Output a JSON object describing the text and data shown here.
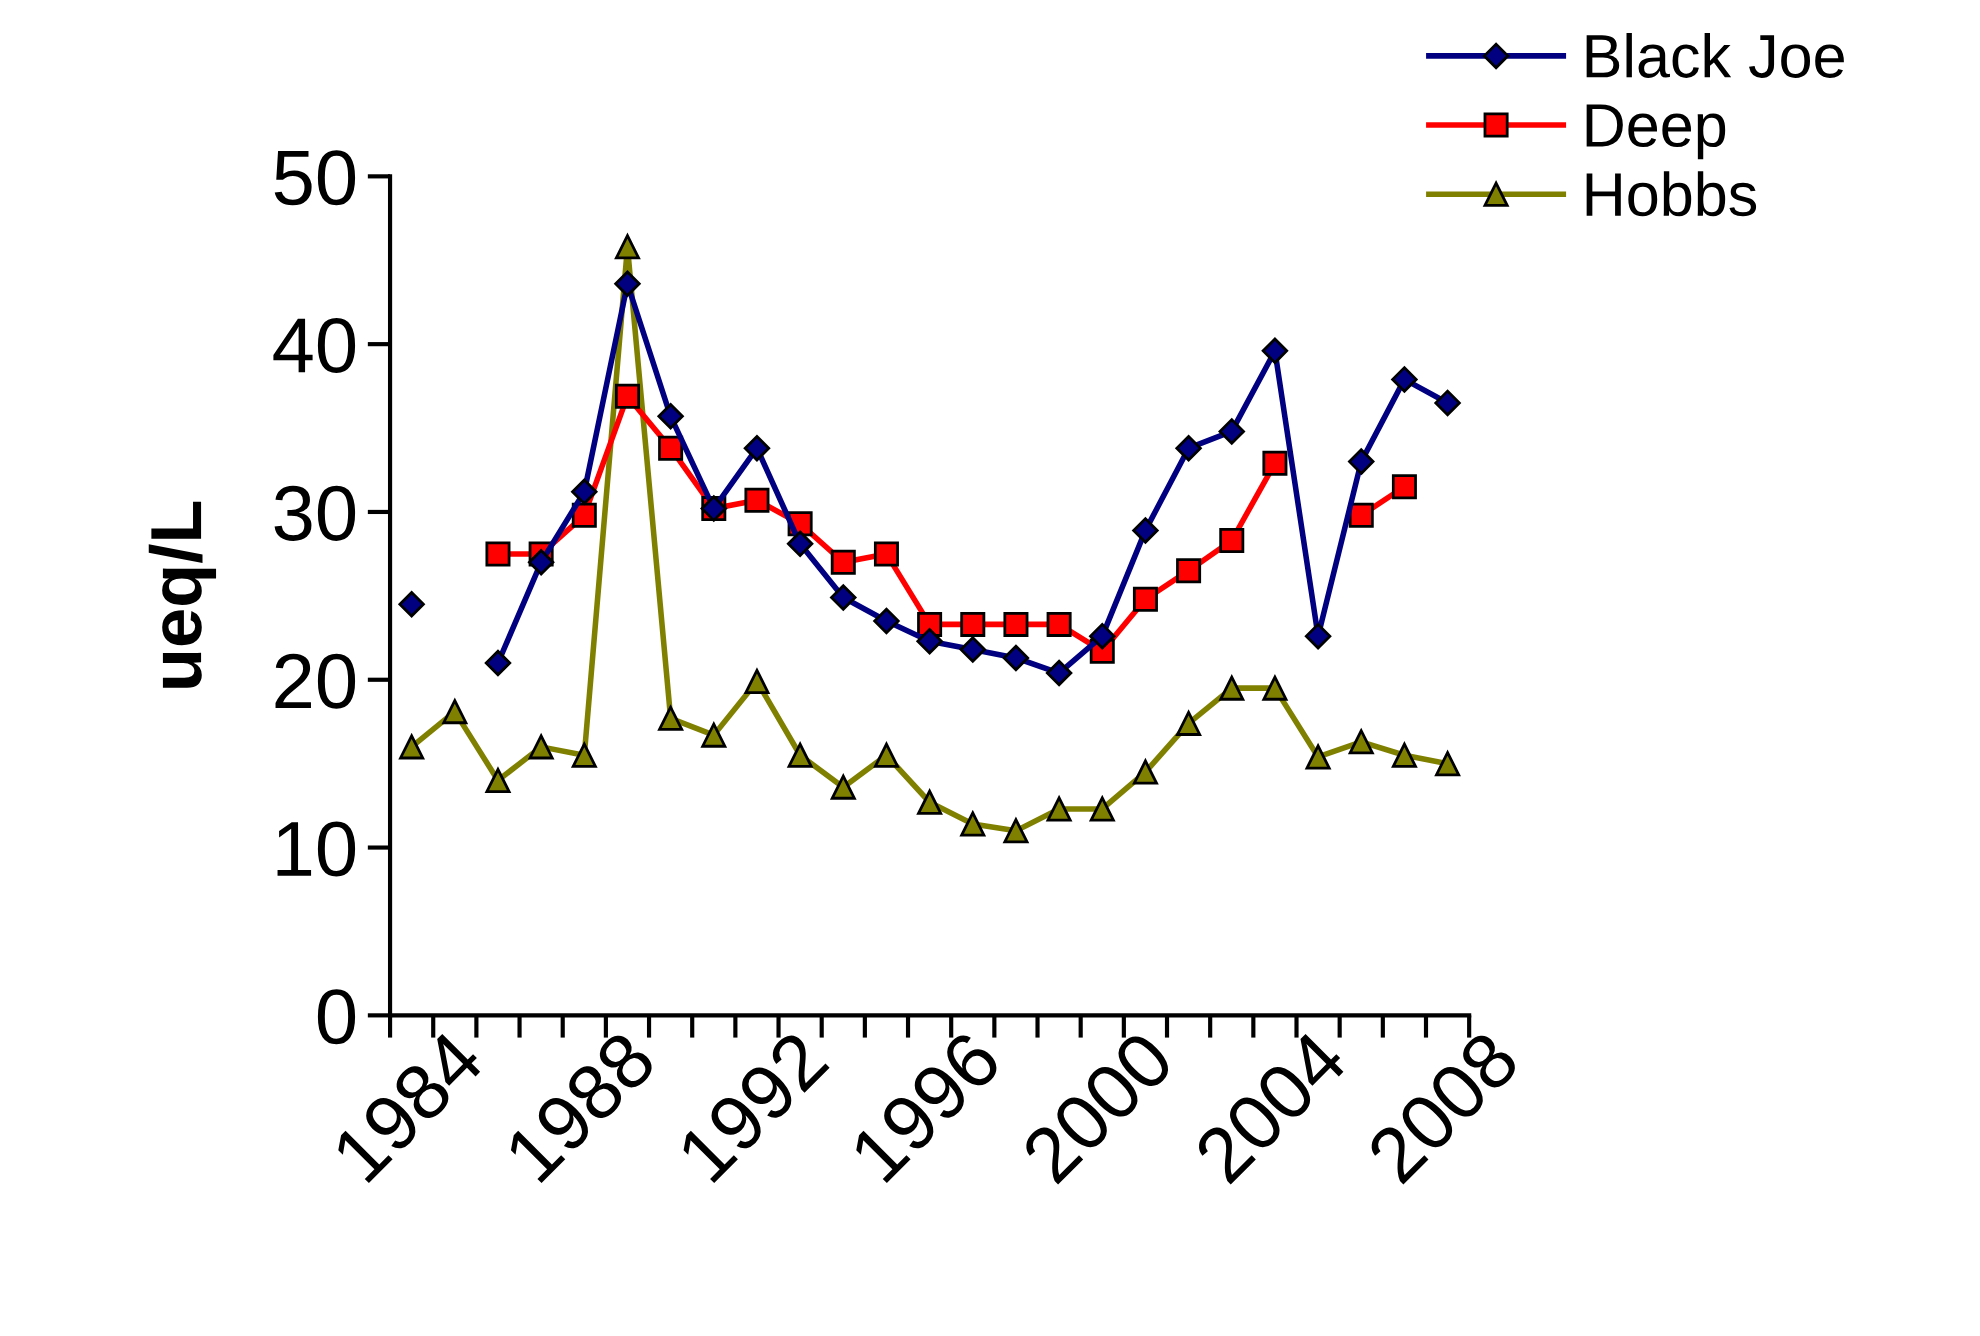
{
  "chart_data": {
    "type": "line",
    "ylabel": "ueq/L",
    "categories": [
      "1984",
      null,
      null,
      null,
      "1988",
      null,
      null,
      null,
      "1992",
      null,
      null,
      null,
      "1996",
      null,
      null,
      null,
      "2000",
      null,
      null,
      null,
      "2004",
      null,
      null,
      null,
      "2008"
    ],
    "series": [
      {
        "name": "Black Joe",
        "color": "#000080",
        "marker": "diamond",
        "values": [
          24.5,
          null,
          21,
          27,
          31.2,
          43.6,
          35.7,
          30.2,
          33.8,
          28.1,
          24.9,
          23.5,
          22.3,
          21.8,
          21.3,
          20.4,
          22.6,
          28.9,
          33.8,
          34.8,
          39.6,
          22.6,
          33,
          37.9,
          36.5
        ]
      },
      {
        "name": "Deep",
        "color": "#ff0000",
        "marker": "square",
        "values": [
          null,
          null,
          27.5,
          27.5,
          29.8,
          36.9,
          33.8,
          30.2,
          30.7,
          29.3,
          27,
          27.5,
          23.3,
          23.3,
          23.3,
          23.3,
          21.7,
          24.8,
          26.5,
          28.3,
          32.9,
          null,
          29.8,
          31.5,
          null
        ]
      },
      {
        "name": "Hobbs",
        "color": "#808000",
        "marker": "triangle",
        "values": [
          16,
          18.1,
          14,
          16,
          15.5,
          45.8,
          17.7,
          16.7,
          19.9,
          15.5,
          13.6,
          15.5,
          12.7,
          11.4,
          11,
          12.3,
          12.3,
          14.5,
          17.4,
          19.5,
          19.5,
          15.4,
          16.3,
          15.5,
          15
        ]
      }
    ],
    "ylim": [
      0,
      50
    ],
    "yticks": [
      0,
      10,
      20,
      30,
      40,
      50
    ],
    "grid": false,
    "legend": "top right",
    "line_style": "solid"
  }
}
